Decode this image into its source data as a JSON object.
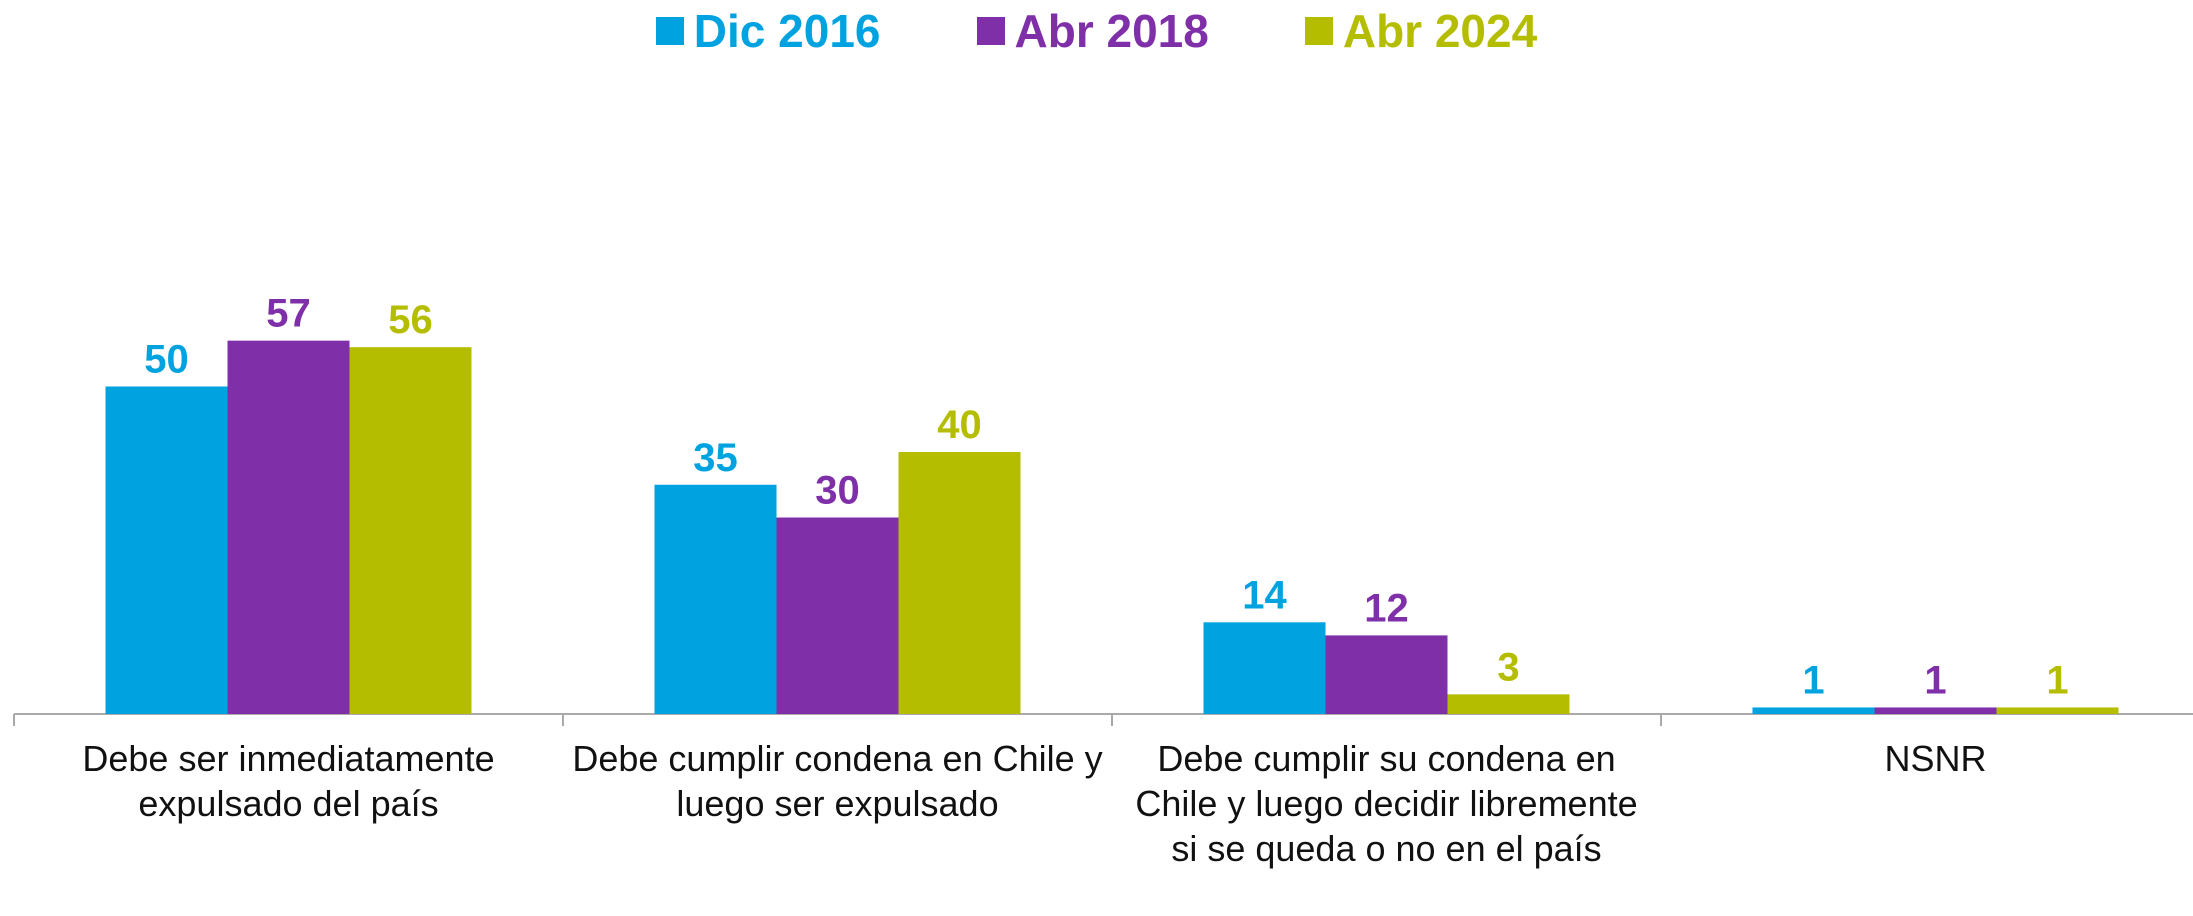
{
  "chart_data": {
    "type": "bar",
    "categories": [
      "Debe ser inmediatamente expulsado del país",
      "Debe cumplir condena en Chile y luego ser expulsado",
      "Debe cumplir su condena en Chile y luego decidir libremente si se queda o no en el país",
      "NSNR"
    ],
    "series": [
      {
        "name": "Dic 2016",
        "color": "#00a3e0",
        "values": [
          50,
          35,
          14,
          1
        ]
      },
      {
        "name": "Abr 2018",
        "color": "#7f2fa8",
        "values": [
          57,
          30,
          12,
          1
        ]
      },
      {
        "name": "Abr 2024",
        "color": "#b5bd00",
        "values": [
          56,
          40,
          3,
          1
        ]
      }
    ],
    "ylim": [
      0,
      100
    ]
  }
}
